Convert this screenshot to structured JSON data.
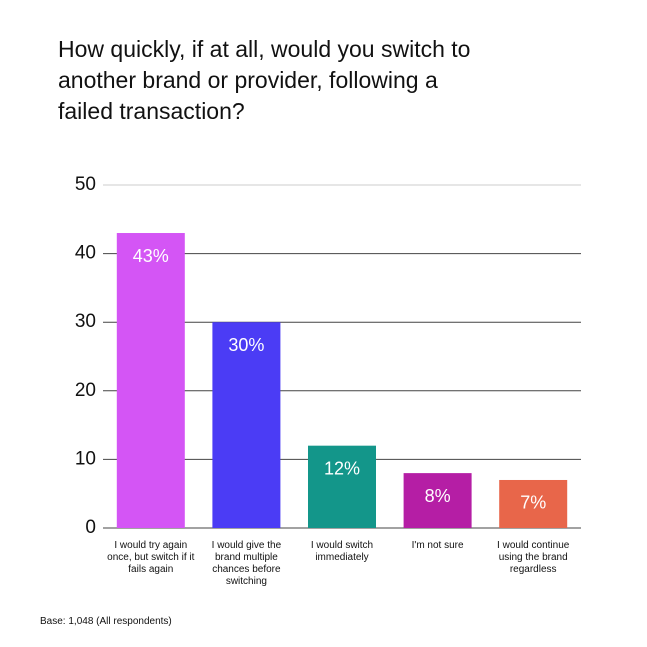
{
  "chart_data": {
    "type": "bar",
    "title": "How quickly, if at all, would you switch to another brand or provider, following a failed transaction?",
    "categories": [
      "I would try again once, but switch if it fails again",
      "I would give the brand multiple chances before switching",
      "I would switch immediately",
      "I'm not sure",
      "I would continue using the brand regardless"
    ],
    "values": [
      43,
      30,
      12,
      8,
      7
    ],
    "value_labels": [
      "43%",
      "30%",
      "12%",
      "8%",
      "7%"
    ],
    "colors": [
      "#d455f5",
      "#4b3cf5",
      "#13968a",
      "#b51ea5",
      "#e8664a"
    ],
    "ylim": [
      0,
      50
    ],
    "yticks": [
      0,
      10,
      20,
      30,
      40,
      50
    ],
    "grid": true,
    "footnote": "Base: 1,048 (All respondents)"
  }
}
